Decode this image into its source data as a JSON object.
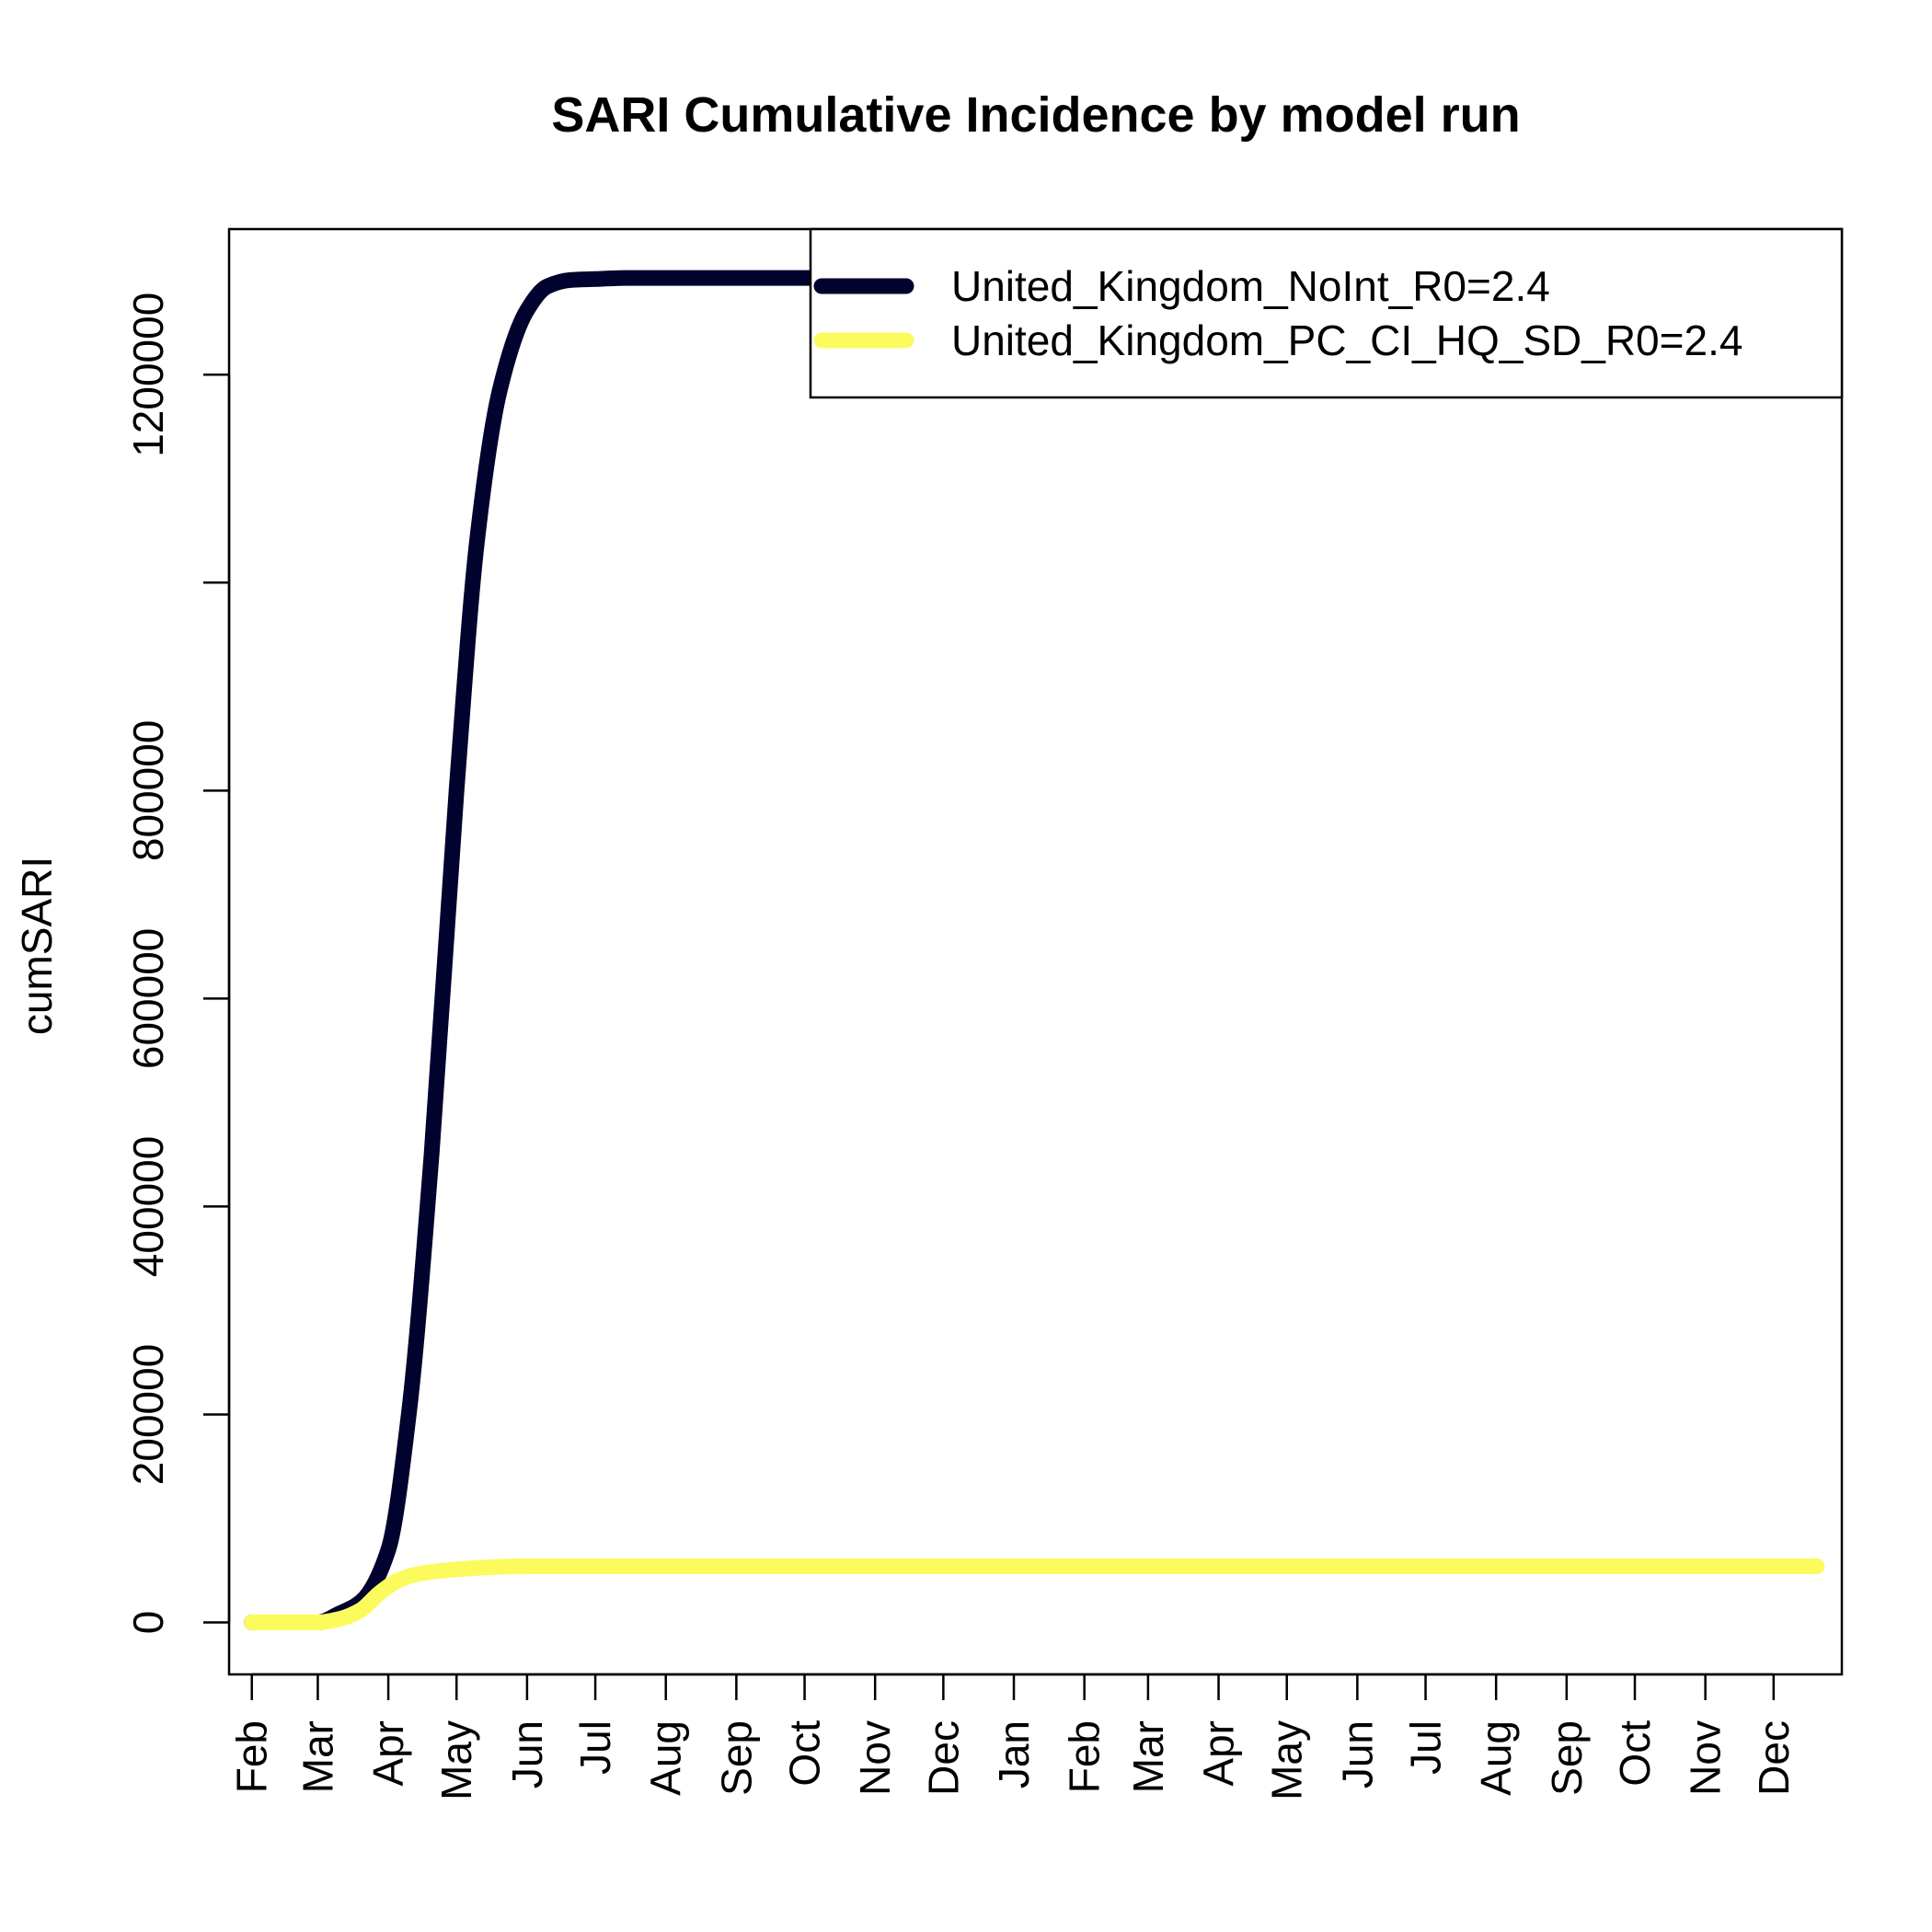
{
  "chart_data": {
    "type": "line",
    "title": "SARI Cumulative Incidence by model run",
    "xlabel": "",
    "ylabel": "cumSARI",
    "x_tick_labels": [
      "Feb",
      "Mar",
      "Apr",
      "May",
      "Jun",
      "Jul",
      "Aug",
      "Sep",
      "Oct",
      "Nov",
      "Dec",
      "Jan",
      "Feb",
      "Mar",
      "Apr",
      "May",
      "Jun",
      "Jul",
      "Aug",
      "Sep",
      "Oct",
      "Nov",
      "Dec"
    ],
    "y_ticks": [
      0,
      200000,
      400000,
      600000,
      800000,
      1000000,
      1200000
    ],
    "y_tick_labels": [
      "0",
      "200000",
      "400000",
      "600000",
      "800000",
      "",
      "1200000"
    ],
    "xlim": [
      "2020-01-22",
      "2021-12-31"
    ],
    "ylim": [
      -50000,
      1340000
    ],
    "grid": false,
    "legend": {
      "position": "top-right"
    },
    "x": [
      "2020-02-01",
      "2020-02-15",
      "2020-03-01",
      "2020-03-10",
      "2020-03-20",
      "2020-04-01",
      "2020-04-10",
      "2020-04-20",
      "2020-05-01",
      "2020-05-10",
      "2020-05-20",
      "2020-06-01",
      "2020-06-10",
      "2020-06-20",
      "2020-07-01",
      "2020-07-15",
      "2020-08-01",
      "2020-09-01",
      "2020-10-01",
      "2020-10-15"
    ],
    "series": [
      {
        "name": "United_Kingdom_NoInt_R0=2.4",
        "color": "#02022e",
        "values": [
          0,
          0,
          0,
          8000,
          20000,
          70000,
          200000,
          450000,
          800000,
          1040000,
          1185000,
          1262000,
          1285000,
          1291000,
          1292000,
          1293000,
          1293000,
          1293000,
          1293000,
          1293000
        ]
      },
      {
        "name": "United_Kingdom_PC_CI_HQ_SD_R0=2.4",
        "color": "#fcfb5e",
        "x": [
          "2020-02-01",
          "2020-02-15",
          "2020-03-01",
          "2020-03-10",
          "2020-03-20",
          "2020-03-28",
          "2020-04-05",
          "2020-04-15",
          "2020-05-01",
          "2020-05-15",
          "2020-06-01",
          "2020-07-01",
          "2020-09-01",
          "2021-01-01",
          "2021-06-01",
          "2021-12-20"
        ],
        "values": [
          0,
          0,
          0,
          3000,
          12000,
          28000,
          40000,
          47000,
          51000,
          53000,
          54000,
          54000,
          54000,
          54000,
          54000,
          54000
        ]
      }
    ]
  }
}
